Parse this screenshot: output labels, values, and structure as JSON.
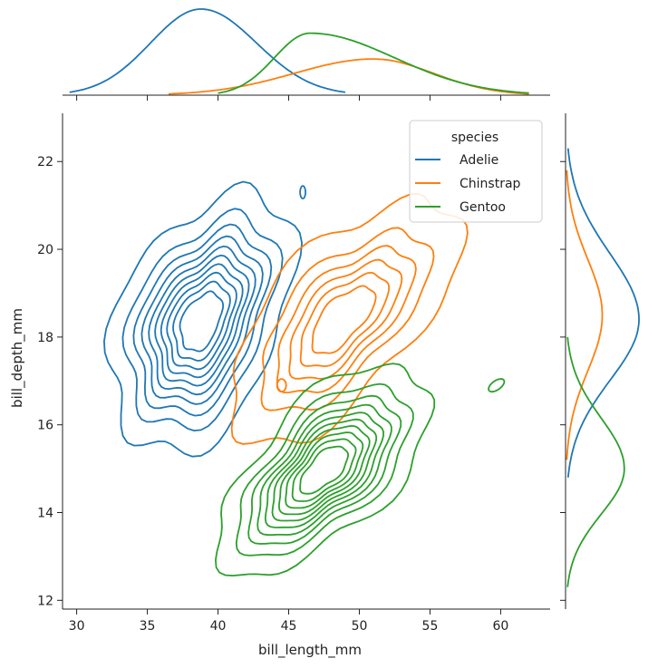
{
  "chart_data": {
    "type": "jointplot-kde",
    "xlabel": "bill_length_mm",
    "ylabel": "bill_depth_mm",
    "xlim": [
      29,
      63.5
    ],
    "ylim": [
      11.8,
      23.1
    ],
    "xticks": [
      30,
      35,
      40,
      45,
      50,
      55,
      60
    ],
    "yticks": [
      12,
      14,
      16,
      18,
      20,
      22
    ],
    "legend": {
      "title": "species",
      "position": "top-right"
    },
    "series": [
      {
        "name": "Adelie",
        "color": "#1f77b4",
        "center": [
          38.8,
          18.35
        ],
        "std": [
          2.66,
          1.21
        ],
        "corr": 0.39,
        "n_contours": 10,
        "marginal_x": {
          "mode": 38.8,
          "range": [
            29.5,
            49
          ]
        },
        "marginal_y": {
          "mode": 18.4,
          "range": [
            14.8,
            22.3
          ]
        }
      },
      {
        "name": "Chinstrap",
        "color": "#ff7f0e",
        "center": [
          48.8,
          18.4
        ],
        "std": [
          3.34,
          1.14
        ],
        "corr": 0.65,
        "n_contours": 6,
        "marginal_x": {
          "mode": 51,
          "range": [
            36.5,
            62
          ]
        },
        "marginal_y": {
          "mode": 18.5,
          "range": [
            15.2,
            21.8
          ]
        }
      },
      {
        "name": "Gentoo",
        "color": "#2ca02c",
        "center": [
          47.5,
          14.98
        ],
        "std": [
          3.08,
          0.98
        ],
        "corr": 0.64,
        "n_contours": 10,
        "marginal_x": {
          "mode": 46.5,
          "range": [
            40,
            62
          ]
        },
        "marginal_y": {
          "mode": 15,
          "range": [
            12.3,
            18
          ]
        }
      }
    ]
  }
}
